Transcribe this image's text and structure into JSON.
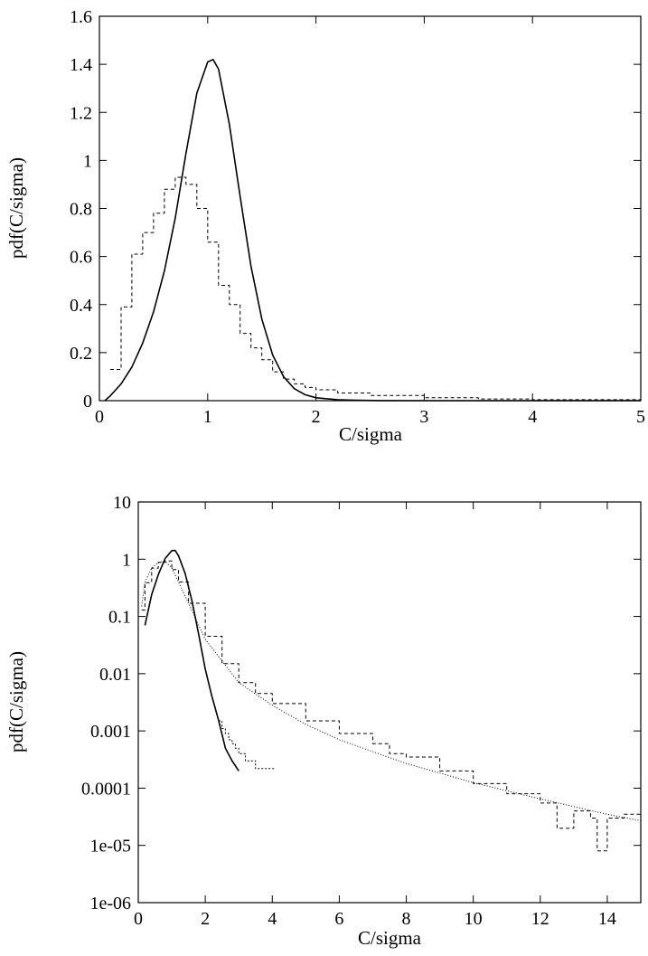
{
  "chart_data": [
    {
      "type": "line",
      "xlabel": "C/sigma",
      "ylabel": "pdf(C/sigma)",
      "xlim": [
        0,
        5
      ],
      "ylim": [
        0,
        1.6
      ],
      "yscale": "linear",
      "grid": false,
      "xticks": [
        "0",
        "1",
        "2",
        "3",
        "4",
        "5"
      ],
      "yticks": [
        "0",
        "0.2",
        "0.4",
        "0.6",
        "0.8",
        "1",
        "1.2",
        "1.4",
        "1.6"
      ],
      "series": [
        {
          "style": "solid",
          "x": [
            0.05,
            0.1,
            0.2,
            0.3,
            0.4,
            0.5,
            0.6,
            0.7,
            0.8,
            0.9,
            1.0,
            1.05,
            1.1,
            1.2,
            1.3,
            1.4,
            1.5,
            1.6,
            1.7,
            1.8,
            1.9,
            2.0,
            2.2,
            2.4,
            2.6,
            3.0,
            5.0
          ],
          "y": [
            0.0,
            0.02,
            0.07,
            0.14,
            0.24,
            0.37,
            0.54,
            0.76,
            1.03,
            1.28,
            1.41,
            1.42,
            1.38,
            1.15,
            0.85,
            0.56,
            0.34,
            0.19,
            0.1,
            0.05,
            0.025,
            0.012,
            0.004,
            0.0015,
            0.0005,
            0.0001,
            0.0
          ]
        },
        {
          "style": "dashed-step",
          "x": [
            0.1,
            0.2,
            0.3,
            0.4,
            0.5,
            0.6,
            0.7,
            0.8,
            0.9,
            1.0,
            1.1,
            1.2,
            1.3,
            1.4,
            1.5,
            1.6,
            1.7,
            1.8,
            1.9,
            2.0,
            2.2,
            2.5,
            3.0,
            3.5,
            4.0,
            5.0
          ],
          "y": [
            0.13,
            0.39,
            0.61,
            0.7,
            0.78,
            0.88,
            0.93,
            0.9,
            0.8,
            0.66,
            0.48,
            0.4,
            0.28,
            0.22,
            0.17,
            0.12,
            0.09,
            0.07,
            0.055,
            0.045,
            0.032,
            0.022,
            0.012,
            0.007,
            0.004,
            0.002
          ]
        }
      ]
    },
    {
      "type": "line",
      "xlabel": "C/sigma",
      "ylabel": "pdf(C/sigma)",
      "xlim": [
        0,
        15
      ],
      "ylim": [
        1e-06,
        10
      ],
      "yscale": "log",
      "grid": false,
      "xticks": [
        "0",
        "2",
        "4",
        "6",
        "8",
        "10",
        "12",
        "14"
      ],
      "yticks": [
        "1e-06",
        "1e-05",
        "0.0001",
        "0.001",
        "0.01",
        "0.1",
        "1",
        "10"
      ],
      "series": [
        {
          "style": "solid",
          "x": [
            0.2,
            0.4,
            0.6,
            0.8,
            1.0,
            1.1,
            1.2,
            1.4,
            1.6,
            1.8,
            2.0,
            2.2,
            2.4,
            2.6,
            2.8,
            3.0
          ],
          "y": [
            0.07,
            0.24,
            0.54,
            1.03,
            1.41,
            1.42,
            1.15,
            0.56,
            0.19,
            0.05,
            0.012,
            0.004,
            0.0015,
            0.0005,
            0.0003,
            0.0002
          ]
        },
        {
          "style": "dashed-step",
          "x": [
            0.1,
            0.2,
            0.4,
            0.6,
            0.8,
            1.0,
            1.2,
            1.5,
            2.0,
            2.5,
            3.0,
            3.5,
            4.0,
            5.0,
            6.0,
            7.0,
            7.5,
            8.0,
            9.0,
            10.0,
            11.0,
            12.0,
            12.5,
            13.0,
            13.5,
            13.7,
            14.0,
            14.5,
            15.0
          ],
          "y": [
            0.13,
            0.39,
            0.7,
            0.88,
            0.93,
            0.66,
            0.4,
            0.17,
            0.045,
            0.015,
            0.007,
            0.0045,
            0.003,
            0.0015,
            0.0009,
            0.0006,
            0.0004,
            0.00035,
            0.0002,
            0.00012,
            8e-05,
            5.5e-05,
            2e-05,
            4e-05,
            3e-05,
            8e-06,
            3e-05,
            3.5e-05,
            2e-05
          ]
        },
        {
          "style": "dotted",
          "x": [
            0.1,
            0.2,
            0.4,
            0.6,
            0.8,
            1.0,
            1.2,
            1.5,
            2.0,
            3.0,
            4.0,
            5.0,
            6.0,
            8.0,
            10.0,
            12.0,
            14.0,
            15.0
          ],
          "y": [
            0.15,
            0.4,
            0.7,
            0.88,
            0.92,
            0.7,
            0.4,
            0.17,
            0.04,
            0.007,
            0.0028,
            0.0013,
            0.0007,
            0.00027,
            0.000125,
            6.5e-05,
            3.5e-05,
            2.7e-05
          ]
        },
        {
          "style": "step-tail",
          "x": [
            2.4,
            2.5,
            2.6,
            2.7,
            2.8,
            2.9,
            3.0,
            3.2,
            3.5,
            3.8,
            4.1
          ],
          "y": [
            0.0015,
            0.0011,
            0.0009,
            0.0007,
            0.0006,
            0.0005,
            0.0004,
            0.0003,
            0.00022,
            0.00022,
            0.00022
          ]
        }
      ]
    }
  ]
}
